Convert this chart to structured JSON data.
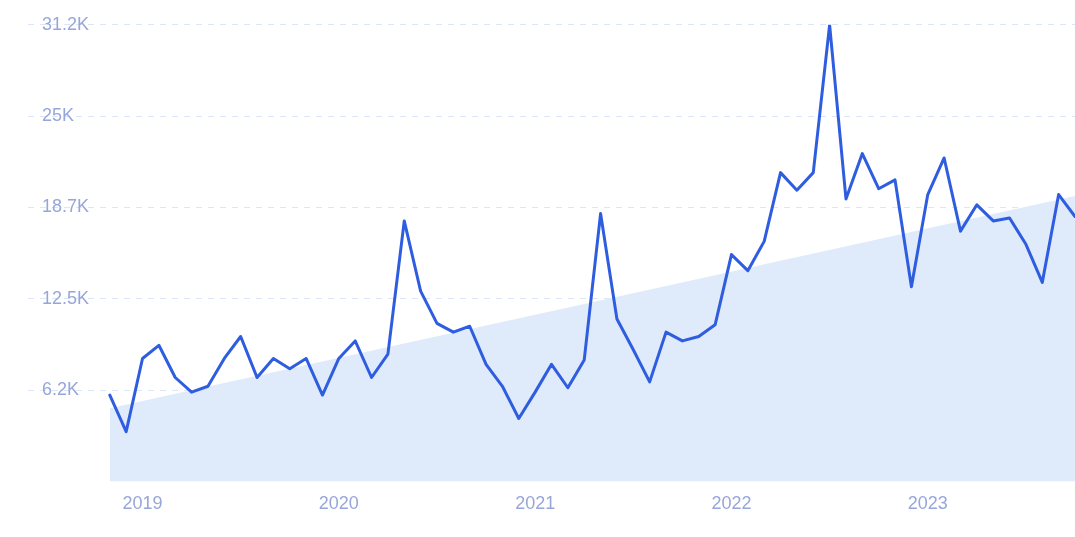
{
  "chart_data": {
    "type": "line",
    "x": [
      "2018-11",
      "2018-12",
      "2019-01",
      "2019-02",
      "2019-03",
      "2019-04",
      "2019-05",
      "2019-06",
      "2019-07",
      "2019-08",
      "2019-09",
      "2019-10",
      "2019-11",
      "2019-12",
      "2020-01",
      "2020-02",
      "2020-03",
      "2020-04",
      "2020-05",
      "2020-06",
      "2020-07",
      "2020-08",
      "2020-09",
      "2020-10",
      "2020-11",
      "2020-12",
      "2021-01",
      "2021-02",
      "2021-03",
      "2021-04",
      "2021-05",
      "2021-06",
      "2021-07",
      "2021-08",
      "2021-09",
      "2021-10",
      "2021-11",
      "2021-12",
      "2022-01",
      "2022-02",
      "2022-03",
      "2022-04",
      "2022-05",
      "2022-06",
      "2022-07",
      "2022-08",
      "2022-09",
      "2022-10",
      "2022-11",
      "2022-12",
      "2023-01",
      "2023-02",
      "2023-03",
      "2023-04",
      "2023-05",
      "2023-06",
      "2023-07",
      "2023-08",
      "2023-09",
      "2023-10"
    ],
    "series": [
      {
        "type": "area",
        "color": "#dfeafa",
        "x": [
          "2018-11",
          "2023-10"
        ],
        "values": [
          5000,
          19500
        ]
      },
      {
        "type": "line",
        "color": "#2f5de0",
        "values": [
          5900,
          3400,
          8400,
          9300,
          7100,
          6100,
          6500,
          8400,
          9900,
          7100,
          8400,
          7700,
          8400,
          5900,
          8400,
          9600,
          7100,
          8700,
          17800,
          13000,
          10800,
          10200,
          10600,
          8000,
          6500,
          4300,
          6100,
          8000,
          6400,
          8300,
          18300,
          11100,
          9000,
          6800,
          10200,
          9600,
          9900,
          10700,
          15500,
          14400,
          16400,
          21100,
          19900,
          21100,
          31200,
          19300,
          22400,
          20000,
          20600,
          13300,
          19600,
          22100,
          17100,
          18900,
          17800,
          18000,
          16200,
          13600,
          19600,
          18100
        ]
      }
    ],
    "xlim": [
      "2018-06",
      "2023-10"
    ],
    "xticks": [
      {
        "value": "2019-01",
        "label": "2019"
      },
      {
        "value": "2020-01",
        "label": "2020"
      },
      {
        "value": "2021-01",
        "label": "2021"
      },
      {
        "value": "2022-01",
        "label": "2022"
      },
      {
        "value": "2023-01",
        "label": "2023"
      }
    ],
    "ylim": [
      0,
      31200
    ],
    "yticks": [
      {
        "value": 6240,
        "label": "6.2K"
      },
      {
        "value": 12480,
        "label": "12.5K"
      },
      {
        "value": 18720,
        "label": "18.7K"
      },
      {
        "value": 24960,
        "label": "25K"
      },
      {
        "value": 31200,
        "label": "31.2K"
      }
    ],
    "grid": "y",
    "marker": "none",
    "line_style": "solid"
  }
}
